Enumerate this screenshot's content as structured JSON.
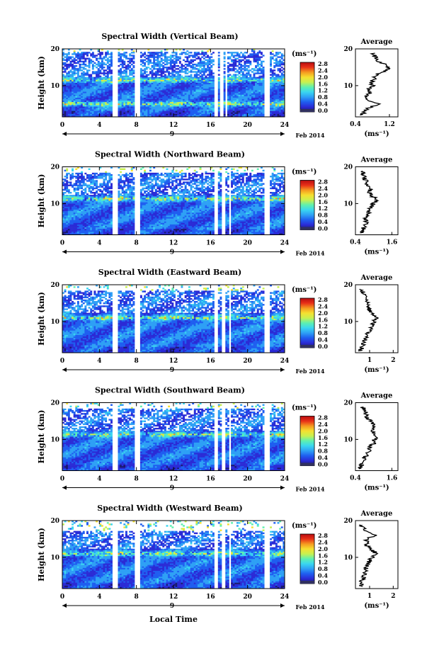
{
  "figure": {
    "xlabel": "Local Time",
    "date_label": "Feb 2014",
    "day_label": "9",
    "colorbar_unit": "(ms⁻¹)",
    "colorbar_ticks": [
      "0.0",
      "0.4",
      "0.8",
      "1.2",
      "1.6",
      "2.0",
      "2.4",
      "2.8"
    ],
    "avg_title": "Average",
    "avg_xlabel": "(ms⁻¹)",
    "ylabel": "Height (km)"
  },
  "colors": {
    "colormap": [
      "#1a1a6e",
      "#2b2bd6",
      "#1f5ef0",
      "#2ea0f5",
      "#3ad6f0",
      "#5ef0b0",
      "#c8f050",
      "#f5e030",
      "#f59a20",
      "#e83018",
      "#b80c10"
    ],
    "zero_color": "#303060",
    "line": "#000000"
  },
  "chart_data": [
    {
      "type": "heatmap",
      "title": "Spectral Width (Vertical Beam)",
      "x_ticks": [
        0,
        4,
        8,
        12,
        16,
        20,
        24
      ],
      "y_ticks": [
        10,
        20
      ],
      "xlim": [
        0,
        24
      ],
      "ylim": [
        1.5,
        20
      ],
      "gaps_hours": [
        [
          5.5,
          5.9
        ],
        [
          7.9,
          8.4
        ],
        [
          16.5,
          16.8
        ],
        [
          17.1,
          17.3
        ],
        [
          17.6,
          17.8
        ],
        [
          21.9,
          22.3
        ]
      ],
      "data_top_km": 19.5,
      "strong_layers_km": [
        5.0,
        11.5
      ],
      "avg_profile": {
        "title": "Average",
        "x_ticks": [
          "0.4",
          "1.2"
        ],
        "xlim": [
          0.4,
          1.4
        ],
        "height_km": [
          2,
          3,
          4,
          5,
          6,
          7,
          8,
          9,
          10,
          11,
          12,
          13,
          14,
          15,
          16,
          17,
          18,
          19
        ],
        "width": [
          0.55,
          0.62,
          0.7,
          0.95,
          0.7,
          0.65,
          0.75,
          0.72,
          0.8,
          0.78,
          0.85,
          0.9,
          1.1,
          1.2,
          1.05,
          0.9,
          0.85,
          0.8
        ]
      }
    },
    {
      "type": "heatmap",
      "title": "Spectral Width (Northward Beam)",
      "x_ticks": [
        0,
        4,
        8,
        12,
        16,
        20,
        24
      ],
      "y_ticks": [
        10,
        20
      ],
      "xlim": [
        0,
        24
      ],
      "ylim": [
        1.5,
        20
      ],
      "gaps_hours": [
        [
          5.5,
          5.9
        ],
        [
          7.9,
          8.4
        ],
        [
          16.5,
          16.8
        ],
        [
          17.3,
          17.5
        ],
        [
          18.0,
          18.2
        ],
        [
          21.9,
          22.3
        ]
      ],
      "data_top_km": 18.5,
      "strong_layers_km": [
        11.3
      ],
      "avg_profile": {
        "title": "Average",
        "x_ticks": [
          "0.4",
          "1.6"
        ],
        "xlim": [
          0.4,
          1.8
        ],
        "height_km": [
          2,
          3,
          4,
          5,
          6,
          7,
          8,
          9,
          10,
          11,
          12,
          13,
          14,
          15,
          16,
          17,
          18,
          19
        ],
        "width": [
          0.6,
          0.65,
          0.7,
          0.75,
          0.72,
          0.8,
          0.85,
          0.9,
          1.0,
          1.15,
          0.95,
          0.85,
          0.9,
          0.8,
          0.75,
          0.7,
          0.65,
          0.6
        ]
      }
    },
    {
      "type": "heatmap",
      "title": "Spectral Width (Eastward Beam)",
      "x_ticks": [
        0,
        4,
        8,
        12,
        16,
        20,
        24
      ],
      "y_ticks": [
        10,
        20
      ],
      "xlim": [
        0,
        24
      ],
      "ylim": [
        1.5,
        20
      ],
      "gaps_hours": [
        [
          5.5,
          5.9
        ],
        [
          7.9,
          8.4
        ],
        [
          16.5,
          16.8
        ],
        [
          17.3,
          17.5
        ],
        [
          18.0,
          18.2
        ],
        [
          21.9,
          22.3
        ]
      ],
      "data_top_km": 18.5,
      "strong_layers_km": [
        11.0
      ],
      "avg_profile": {
        "title": "Average",
        "x_ticks": [
          "1",
          "2"
        ],
        "xlim": [
          0.4,
          2.2
        ],
        "height_km": [
          2,
          3,
          4,
          5,
          6,
          7,
          8,
          9,
          10,
          11,
          12,
          13,
          14,
          15,
          16,
          17,
          18,
          19
        ],
        "width": [
          0.6,
          0.7,
          0.75,
          0.8,
          0.85,
          0.95,
          1.05,
          1.1,
          1.2,
          1.3,
          1.15,
          1.0,
          0.95,
          0.9,
          0.85,
          0.8,
          0.7,
          0.65
        ]
      }
    },
    {
      "type": "heatmap",
      "title": "Spectral Width (Southward Beam)",
      "x_ticks": [
        0,
        4,
        8,
        12,
        16,
        20,
        24
      ],
      "y_ticks": [
        10,
        20
      ],
      "xlim": [
        0,
        24
      ],
      "ylim": [
        1.5,
        20
      ],
      "gaps_hours": [
        [
          5.5,
          5.9
        ],
        [
          7.9,
          8.4
        ],
        [
          16.5,
          16.8
        ],
        [
          17.3,
          17.5
        ],
        [
          18.0,
          18.2
        ],
        [
          21.9,
          22.3
        ]
      ],
      "data_top_km": 18.5,
      "strong_layers_km": [
        11.3
      ],
      "avg_profile": {
        "title": "Average",
        "x_ticks": [
          "0.4",
          "1.6"
        ],
        "xlim": [
          0.4,
          1.8
        ],
        "height_km": [
          2,
          3,
          4,
          5,
          6,
          7,
          8,
          9,
          10,
          11,
          12,
          13,
          14,
          15,
          16,
          17,
          18,
          19
        ],
        "width": [
          0.55,
          0.6,
          0.65,
          0.7,
          0.8,
          0.85,
          0.9,
          1.0,
          1.05,
          1.1,
          1.0,
          0.95,
          1.0,
          0.9,
          0.8,
          0.75,
          0.7,
          0.6
        ]
      }
    },
    {
      "type": "heatmap",
      "title": "Spectral Width (Westward Beam)",
      "x_ticks": [
        0,
        4,
        8,
        12,
        16,
        20,
        24
      ],
      "y_ticks": [
        10,
        20
      ],
      "xlim": [
        0,
        24
      ],
      "ylim": [
        1.5,
        20
      ],
      "gaps_hours": [
        [
          5.5,
          5.9
        ],
        [
          7.9,
          8.4
        ],
        [
          16.5,
          16.8
        ],
        [
          17.3,
          17.5
        ],
        [
          18.0,
          18.2
        ],
        [
          21.9,
          22.3
        ]
      ],
      "data_top_km": 17.5,
      "strong_layers_km": [
        11.0
      ],
      "avg_profile": {
        "title": "Average",
        "x_ticks": [
          "1",
          "2"
        ],
        "xlim": [
          0.4,
          2.2
        ],
        "height_km": [
          2,
          3,
          4,
          5,
          6,
          7,
          8,
          9,
          10,
          11,
          12,
          13,
          14,
          15,
          16,
          17,
          18,
          19
        ],
        "width": [
          0.6,
          0.65,
          0.7,
          0.75,
          0.8,
          0.85,
          0.9,
          1.0,
          1.1,
          1.3,
          1.1,
          0.9,
          0.85,
          0.9,
          1.2,
          0.9,
          0.7,
          0.65
        ]
      }
    }
  ]
}
